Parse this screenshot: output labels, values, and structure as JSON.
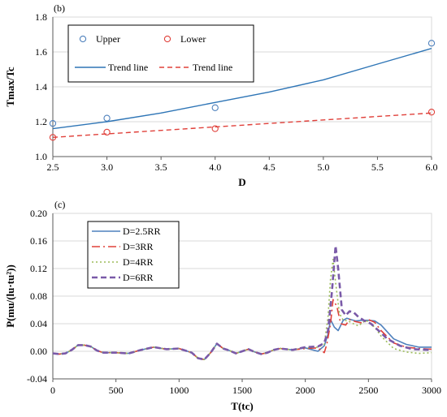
{
  "chart_data": [
    {
      "panel_label": "(b)",
      "type": "scatter",
      "xlabel": "D",
      "ylabel": "Tmax/Tc",
      "xlim": [
        2.5,
        6.0
      ],
      "ylim": [
        1.0,
        1.8
      ],
      "x_ticks": [
        "2.5",
        "3.0",
        "3.5",
        "4.0",
        "4.5",
        "5.0",
        "5.5",
        "6.0"
      ],
      "y_ticks": [
        "1.0",
        "1.2",
        "1.4",
        "1.6",
        "1.8"
      ],
      "grid": "horizontal",
      "legend_placement": "top (2 columns, boxed)",
      "series": [
        {
          "name": "Upper",
          "kind": "markers",
          "color": "#4f81bd",
          "x": [
            2.5,
            3.0,
            4.0,
            6.0
          ],
          "y": [
            1.19,
            1.22,
            1.28,
            1.65
          ]
        },
        {
          "name": "Lower",
          "kind": "markers",
          "color": "#e0403a",
          "x": [
            2.5,
            3.0,
            4.0,
            6.0
          ],
          "y": [
            1.11,
            1.14,
            1.16,
            1.255
          ]
        },
        {
          "name": "Trend line",
          "kind": "solid-line",
          "color": "#2e75b6",
          "x": [
            2.5,
            3.0,
            3.5,
            4.0,
            4.5,
            5.0,
            5.5,
            6.0
          ],
          "y": [
            1.16,
            1.2,
            1.25,
            1.31,
            1.37,
            1.44,
            1.53,
            1.62
          ]
        },
        {
          "name": "Trend line",
          "kind": "dashed-line",
          "color": "#e0403a",
          "x": [
            2.5,
            6.0
          ],
          "y": [
            1.11,
            1.25
          ]
        }
      ]
    },
    {
      "panel_label": "(c)",
      "type": "line",
      "xlabel": "T(tc)",
      "ylabel": "P(mu/(lu·tu²))",
      "xlim": [
        0,
        3000
      ],
      "ylim": [
        -0.04,
        0.2
      ],
      "x_ticks": [
        "0",
        "500",
        "1000",
        "1500",
        "2000",
        "2500",
        "3000"
      ],
      "y_ticks": [
        "-0.04",
        "0.00",
        "0.04",
        "0.08",
        "0.12",
        "0.16",
        "0.20"
      ],
      "grid": "horizontal",
      "legend_placement": "top-left (boxed)",
      "series": [
        {
          "name": "D=2.5RR",
          "style": "solid",
          "color": "#4f81bd",
          "x": [
            0,
            50,
            100,
            150,
            200,
            250,
            300,
            350,
            400,
            500,
            600,
            700,
            800,
            900,
            1000,
            1100,
            1150,
            1200,
            1250,
            1300,
            1350,
            1400,
            1450,
            1500,
            1550,
            1600,
            1650,
            1700,
            1750,
            1800,
            1900,
            2000,
            2100,
            2150,
            2180,
            2200,
            2230,
            2260,
            2300,
            2330,
            2360,
            2400,
            2450,
            2500,
            2550,
            2600,
            2700,
            2800,
            2900,
            3000
          ],
          "y": [
            -0.003,
            -0.004,
            -0.003,
            0.002,
            0.009,
            0.009,
            0.007,
            0.001,
            -0.002,
            -0.002,
            -0.003,
            0.002,
            0.006,
            0.003,
            0.004,
            -0.002,
            -0.01,
            -0.012,
            -0.002,
            0.011,
            0.004,
            0.001,
            -0.003,
            0.0,
            0.003,
            -0.001,
            -0.004,
            -0.002,
            0.002,
            0.004,
            0.002,
            0.005,
            0.0,
            0.008,
            0.025,
            0.046,
            0.035,
            0.03,
            0.045,
            0.048,
            0.046,
            0.044,
            0.045,
            0.045,
            0.044,
            0.038,
            0.018,
            0.01,
            0.006,
            0.006
          ]
        },
        {
          "name": "D=3RR",
          "style": "dash-dot",
          "color": "#e0403a",
          "x": [
            0,
            50,
            100,
            150,
            200,
            250,
            300,
            350,
            400,
            500,
            600,
            700,
            800,
            900,
            1000,
            1100,
            1150,
            1200,
            1250,
            1300,
            1350,
            1400,
            1450,
            1500,
            1550,
            1600,
            1650,
            1700,
            1750,
            1800,
            1900,
            2000,
            2100,
            2150,
            2170,
            2200,
            2220,
            2250,
            2280,
            2320,
            2350,
            2400,
            2450,
            2500,
            2550,
            2600,
            2700,
            2800,
            2900,
            3000
          ],
          "y": [
            -0.003,
            -0.004,
            -0.003,
            0.002,
            0.009,
            0.009,
            0.007,
            0.001,
            -0.002,
            -0.002,
            -0.003,
            0.002,
            0.006,
            0.003,
            0.004,
            -0.002,
            -0.01,
            -0.012,
            -0.002,
            0.011,
            0.004,
            0.001,
            -0.003,
            0.0,
            0.003,
            -0.001,
            -0.004,
            -0.002,
            0.002,
            0.004,
            0.002,
            0.004,
            0.005,
            -0.002,
            0.01,
            0.04,
            0.075,
            0.065,
            0.04,
            0.038,
            0.046,
            0.043,
            0.041,
            0.046,
            0.042,
            0.03,
            0.012,
            0.006,
            0.004,
            0.003
          ]
        },
        {
          "name": "D=4RR",
          "style": "dotted",
          "color": "#9bbb59",
          "x": [
            0,
            50,
            100,
            150,
            200,
            250,
            300,
            350,
            400,
            500,
            600,
            700,
            800,
            900,
            1000,
            1100,
            1150,
            1200,
            1250,
            1300,
            1350,
            1400,
            1450,
            1500,
            1550,
            1600,
            1650,
            1700,
            1750,
            1800,
            1900,
            2000,
            2100,
            2150,
            2180,
            2200,
            2220,
            2240,
            2270,
            2300,
            2340,
            2380,
            2420,
            2480,
            2550,
            2600,
            2700,
            2800,
            2900,
            3000
          ],
          "y": [
            -0.003,
            -0.004,
            -0.003,
            0.002,
            0.009,
            0.009,
            0.007,
            0.001,
            -0.002,
            -0.002,
            -0.003,
            0.002,
            0.006,
            0.003,
            0.004,
            -0.002,
            -0.01,
            -0.012,
            -0.002,
            0.011,
            0.004,
            0.001,
            -0.003,
            0.0,
            0.003,
            -0.001,
            -0.004,
            -0.002,
            0.002,
            0.004,
            0.002,
            0.005,
            0.006,
            0.01,
            0.05,
            0.105,
            0.133,
            0.1,
            0.055,
            0.045,
            0.044,
            0.04,
            0.037,
            0.045,
            0.035,
            0.022,
            0.004,
            -0.001,
            -0.003,
            -0.002
          ]
        },
        {
          "name": "D=6RR",
          "style": "dashed",
          "color": "#7a5aa8",
          "x": [
            0,
            50,
            100,
            150,
            200,
            250,
            300,
            350,
            400,
            500,
            600,
            700,
            800,
            900,
            1000,
            1100,
            1150,
            1200,
            1250,
            1300,
            1350,
            1400,
            1450,
            1500,
            1550,
            1600,
            1650,
            1700,
            1750,
            1800,
            1900,
            2000,
            2100,
            2150,
            2180,
            2210,
            2240,
            2260,
            2290,
            2320,
            2350,
            2380,
            2420,
            2470,
            2520,
            2580,
            2650,
            2750,
            2850,
            3000
          ],
          "y": [
            -0.003,
            -0.004,
            -0.003,
            0.002,
            0.009,
            0.009,
            0.007,
            0.001,
            -0.002,
            -0.002,
            -0.003,
            0.002,
            0.006,
            0.003,
            0.004,
            -0.002,
            -0.01,
            -0.012,
            -0.002,
            0.011,
            0.004,
            0.001,
            -0.003,
            0.0,
            0.003,
            -0.001,
            -0.004,
            -0.002,
            0.002,
            0.004,
            0.002,
            0.006,
            0.007,
            0.012,
            0.03,
            0.085,
            0.153,
            0.12,
            0.06,
            0.052,
            0.058,
            0.057,
            0.05,
            0.044,
            0.04,
            0.03,
            0.018,
            0.008,
            0.003,
            0.002
          ]
        }
      ]
    }
  ]
}
